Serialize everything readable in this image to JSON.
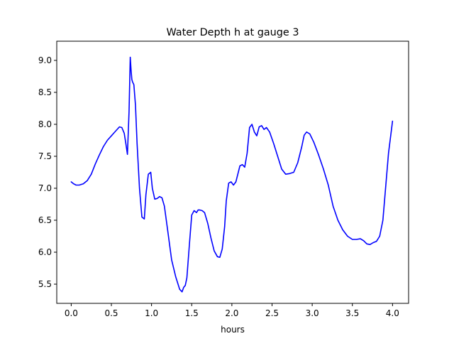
{
  "chart_data": {
    "type": "line",
    "title": "Water Depth h at gauge 3",
    "xlabel": "hours",
    "ylabel": "",
    "xlim": [
      -0.18,
      4.2
    ],
    "ylim": [
      5.2,
      9.3
    ],
    "xticks": [
      0.0,
      0.5,
      1.0,
      1.5,
      2.0,
      2.5,
      3.0,
      3.5,
      4.0
    ],
    "xtick_labels": [
      "0.0",
      "0.5",
      "1.0",
      "1.5",
      "2.0",
      "2.5",
      "3.0",
      "3.5",
      "4.0"
    ],
    "yticks": [
      5.5,
      6.0,
      6.5,
      7.0,
      7.5,
      8.0,
      8.5,
      9.0
    ],
    "ytick_labels": [
      "5.5",
      "6.0",
      "6.5",
      "7.0",
      "7.5",
      "8.0",
      "8.5",
      "9.0"
    ],
    "grid": false,
    "series": [
      {
        "color": "#0000ff",
        "x": [
          0.0,
          0.03,
          0.06,
          0.1,
          0.15,
          0.2,
          0.25,
          0.3,
          0.35,
          0.4,
          0.45,
          0.5,
          0.55,
          0.6,
          0.63,
          0.66,
          0.68,
          0.7,
          0.72,
          0.735,
          0.745,
          0.755,
          0.765,
          0.78,
          0.8,
          0.82,
          0.85,
          0.88,
          0.91,
          0.93,
          0.96,
          0.99,
          1.01,
          1.04,
          1.07,
          1.1,
          1.13,
          1.16,
          1.2,
          1.25,
          1.3,
          1.35,
          1.38,
          1.4,
          1.42,
          1.44,
          1.47,
          1.5,
          1.53,
          1.56,
          1.58,
          1.6,
          1.63,
          1.66,
          1.7,
          1.74,
          1.78,
          1.82,
          1.85,
          1.88,
          1.91,
          1.93,
          1.96,
          1.99,
          2.02,
          2.05,
          2.08,
          2.1,
          2.13,
          2.16,
          2.19,
          2.22,
          2.25,
          2.28,
          2.31,
          2.34,
          2.37,
          2.4,
          2.43,
          2.47,
          2.52,
          2.57,
          2.62,
          2.67,
          2.72,
          2.77,
          2.82,
          2.87,
          2.9,
          2.93,
          2.97,
          3.02,
          3.08,
          3.14,
          3.2,
          3.26,
          3.32,
          3.38,
          3.44,
          3.5,
          3.55,
          3.6,
          3.64,
          3.68,
          3.72,
          3.76,
          3.8,
          3.84,
          3.88,
          3.92,
          3.95,
          3.98,
          4.0
        ],
        "y": [
          7.1,
          7.07,
          7.05,
          7.05,
          7.07,
          7.12,
          7.22,
          7.38,
          7.52,
          7.65,
          7.75,
          7.82,
          7.89,
          7.96,
          7.95,
          7.86,
          7.7,
          7.53,
          8.2,
          9.05,
          8.85,
          8.7,
          8.66,
          8.62,
          8.3,
          7.7,
          7.0,
          6.55,
          6.52,
          6.9,
          7.22,
          7.25,
          7.0,
          6.83,
          6.84,
          6.87,
          6.85,
          6.72,
          6.35,
          5.88,
          5.62,
          5.42,
          5.38,
          5.45,
          5.48,
          5.6,
          6.1,
          6.58,
          6.65,
          6.62,
          6.66,
          6.66,
          6.65,
          6.62,
          6.45,
          6.22,
          6.02,
          5.93,
          5.92,
          6.05,
          6.4,
          6.8,
          7.08,
          7.1,
          7.05,
          7.1,
          7.25,
          7.35,
          7.37,
          7.33,
          7.55,
          7.95,
          8.0,
          7.88,
          7.82,
          7.96,
          7.98,
          7.92,
          7.95,
          7.88,
          7.7,
          7.5,
          7.3,
          7.22,
          7.23,
          7.25,
          7.4,
          7.65,
          7.83,
          7.88,
          7.85,
          7.72,
          7.52,
          7.3,
          7.05,
          6.72,
          6.5,
          6.35,
          6.25,
          6.2,
          6.2,
          6.21,
          6.18,
          6.13,
          6.12,
          6.15,
          6.17,
          6.25,
          6.5,
          7.1,
          7.55,
          7.85,
          8.05
        ]
      }
    ]
  }
}
